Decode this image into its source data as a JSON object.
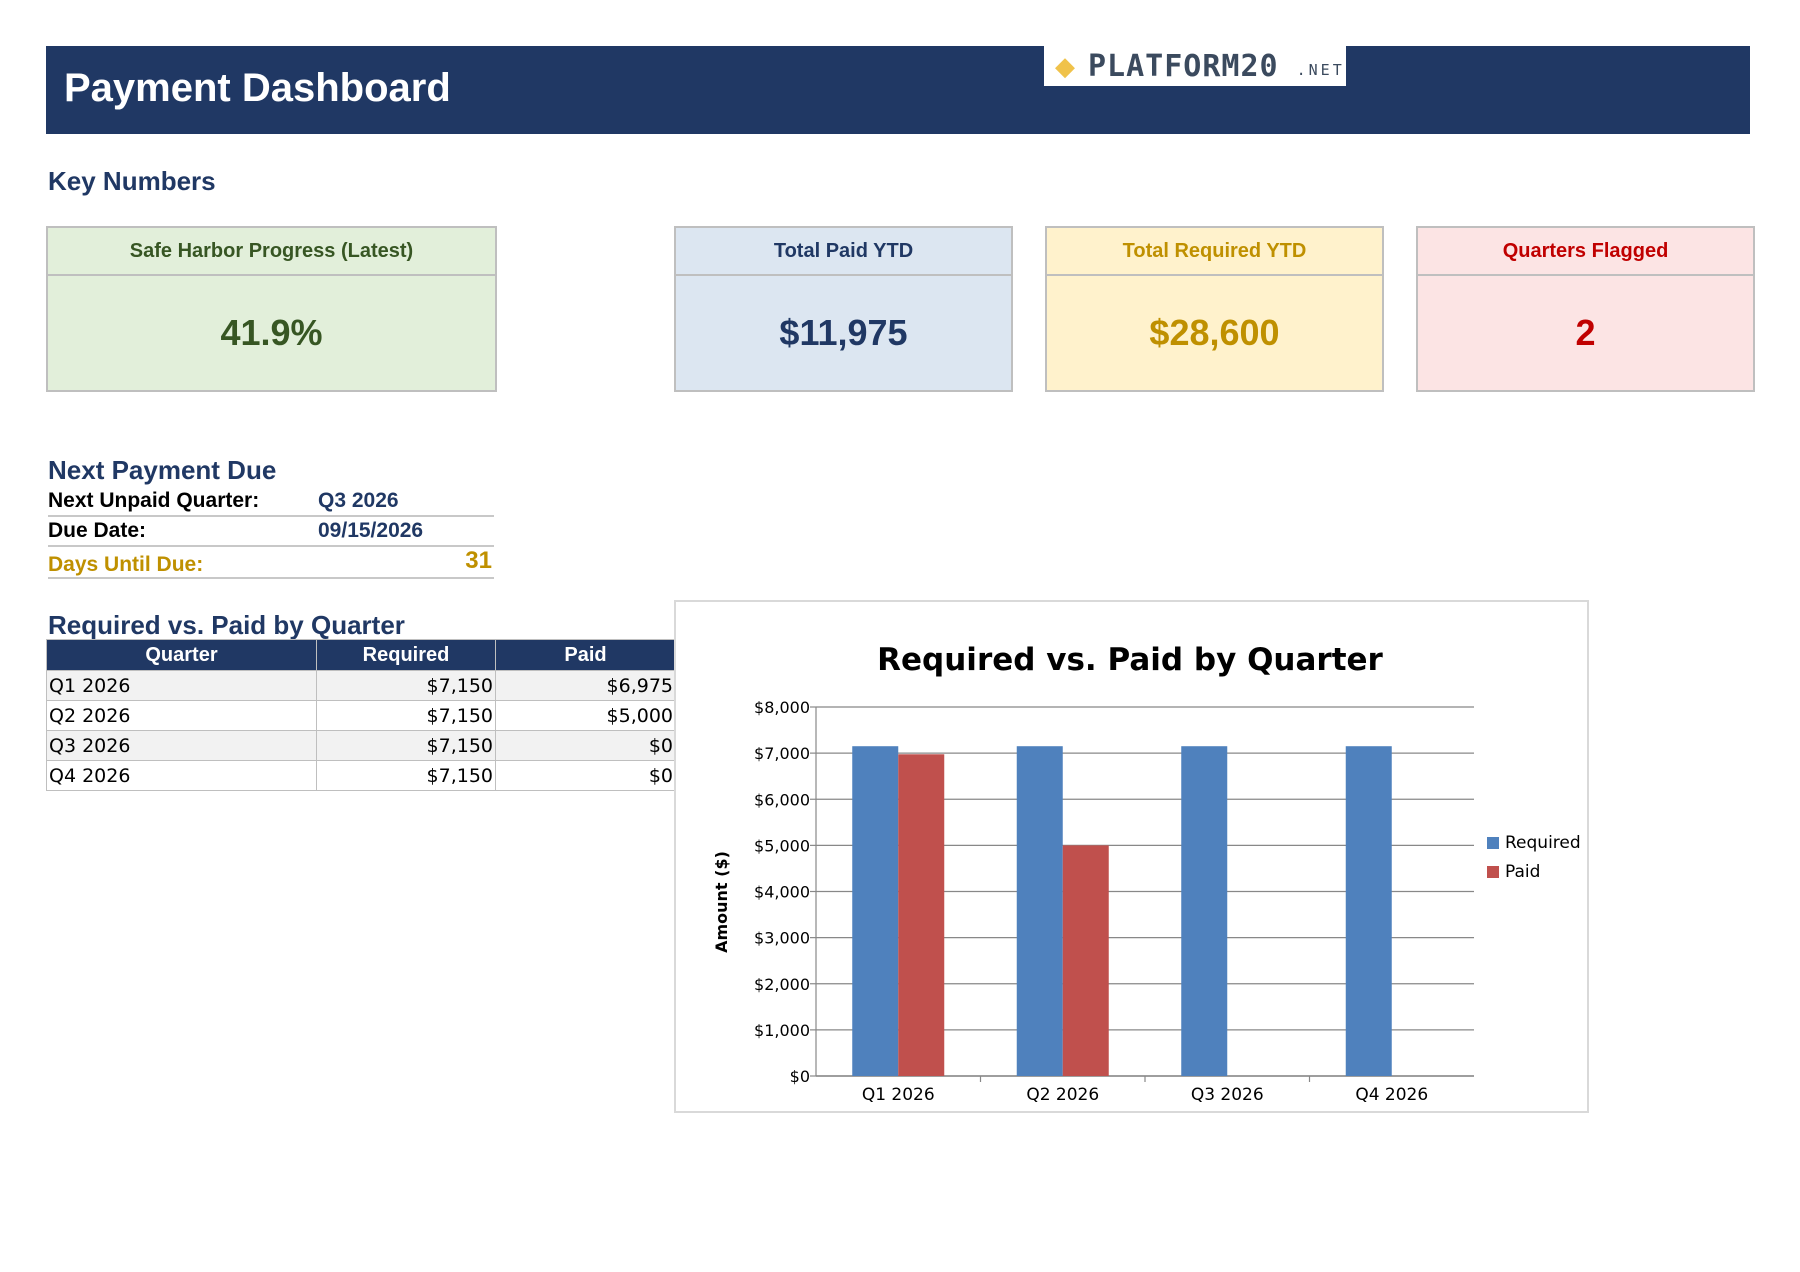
{
  "header": {
    "title": "Payment Dashboard",
    "logo": {
      "icon": "diamond-icon",
      "text": "PLATFORM20",
      "suffix": ".NET",
      "icon_color": "#f0c24a"
    }
  },
  "key_numbers": {
    "heading": "Key Numbers",
    "cards": [
      {
        "label": "Safe Harbor Progress (Latest)",
        "value": "41.9%"
      },
      {
        "label": "Total Paid YTD",
        "value": "$11,975"
      },
      {
        "label": "Total Required YTD",
        "value": "$28,600"
      },
      {
        "label": "Quarters Flagged",
        "value": "2"
      }
    ]
  },
  "next_payment": {
    "heading": "Next Payment Due",
    "rows": [
      {
        "label": "Next Unpaid Quarter:",
        "value": "Q3 2026"
      },
      {
        "label": "Due Date:",
        "value": "09/15/2026"
      },
      {
        "label": "Days Until Due:",
        "value": "31"
      }
    ]
  },
  "quarter_table": {
    "heading": "Required vs. Paid by Quarter",
    "columns": [
      "Quarter",
      "Required",
      "Paid"
    ],
    "rows": [
      [
        "Q1 2026",
        "$7,150",
        "$6,975"
      ],
      [
        "Q2 2026",
        "$7,150",
        "$5,000"
      ],
      [
        "Q3 2026",
        "$7,150",
        "$0"
      ],
      [
        "Q4 2026",
        "$7,150",
        "$0"
      ]
    ]
  },
  "chart_data": {
    "type": "bar",
    "title": "Required vs. Paid by Quarter",
    "xlabel": "",
    "ylabel": "Amount ($)",
    "categories": [
      "Q1 2026",
      "Q2 2026",
      "Q3 2026",
      "Q4 2026"
    ],
    "series": [
      {
        "name": "Required",
        "values": [
          7150,
          7150,
          7150,
          7150
        ],
        "color": "#4f81bd"
      },
      {
        "name": "Paid",
        "values": [
          6975,
          5000,
          0,
          0
        ],
        "color": "#c0504d"
      }
    ],
    "ylim": [
      0,
      8000
    ],
    "yticks": [
      0,
      1000,
      2000,
      3000,
      4000,
      5000,
      6000,
      7000,
      8000
    ],
    "ytick_labels": [
      "$0",
      "$1,000",
      "$2,000",
      "$3,000",
      "$4,000",
      "$5,000",
      "$6,000",
      "$7,000",
      "$8,000"
    ],
    "grid": true,
    "legend": "right"
  }
}
